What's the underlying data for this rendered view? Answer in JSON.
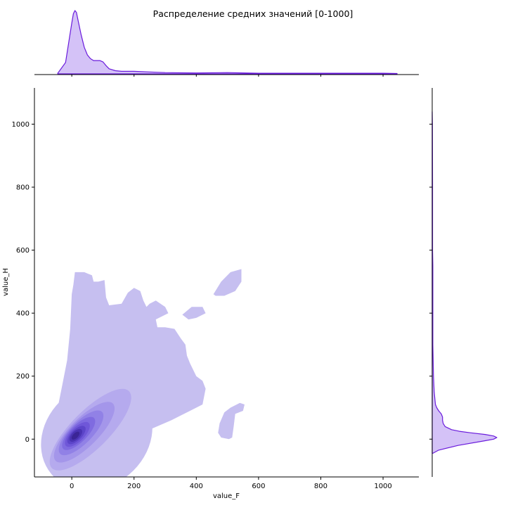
{
  "chart_data": {
    "type": "kde-joint",
    "title": "Распределение средних значений [0-1000]",
    "xlabel": "value_F",
    "ylabel": "value_H",
    "xlim": [
      -120,
      1115
    ],
    "ylim": [
      -120,
      1115
    ],
    "x_ticks": [
      0,
      200,
      400,
      600,
      800,
      1000
    ],
    "y_ticks": [
      0,
      200,
      400,
      600,
      800,
      1000
    ],
    "grid": false,
    "legend": "none",
    "kde_levels": 10,
    "marginal_x": {
      "x": [
        -45,
        -20,
        0,
        5,
        10,
        15,
        20,
        30,
        40,
        50,
        60,
        70,
        80,
        90,
        100,
        110,
        120,
        140,
        160,
        180,
        200,
        250,
        300,
        400,
        500,
        600,
        700,
        800,
        900,
        1000,
        1045
      ],
      "density": [
        0.01,
        0.18,
        0.8,
        0.95,
        1.0,
        0.97,
        0.85,
        0.62,
        0.42,
        0.3,
        0.24,
        0.21,
        0.21,
        0.21,
        0.19,
        0.13,
        0.08,
        0.05,
        0.04,
        0.04,
        0.04,
        0.03,
        0.02,
        0.015,
        0.02,
        0.01,
        0.01,
        0.01,
        0.01,
        0.01,
        0.005
      ]
    },
    "marginal_y": {
      "y": [
        -45,
        -35,
        -20,
        -5,
        0,
        5,
        10,
        15,
        20,
        25,
        30,
        40,
        50,
        60,
        70,
        80,
        90,
        100,
        110,
        130,
        150,
        200,
        300,
        400,
        500,
        550,
        600,
        800,
        1000,
        1040
      ],
      "density": [
        0.01,
        0.1,
        0.4,
        0.82,
        0.95,
        1.0,
        0.95,
        0.82,
        0.6,
        0.42,
        0.3,
        0.2,
        0.17,
        0.16,
        0.16,
        0.14,
        0.1,
        0.07,
        0.05,
        0.04,
        0.03,
        0.02,
        0.01,
        0.01,
        0.01,
        0.01,
        0.005,
        0.005,
        0.003,
        0.0
      ]
    },
    "kde_2d": {
      "outer_region_1": [
        [
          -65,
          -60
        ],
        [
          -10,
          -60
        ],
        [
          50,
          -40
        ],
        [
          150,
          -5
        ],
        [
          250,
          30
        ],
        [
          320,
          60
        ],
        [
          380,
          90
        ],
        [
          420,
          110
        ],
        [
          430,
          160
        ],
        [
          420,
          185
        ],
        [
          400,
          200
        ],
        [
          380,
          240
        ],
        [
          370,
          265
        ],
        [
          365,
          300
        ],
        [
          350,
          320
        ],
        [
          330,
          350
        ],
        [
          300,
          355
        ],
        [
          275,
          355
        ],
        [
          270,
          380
        ],
        [
          310,
          400
        ],
        [
          300,
          420
        ],
        [
          270,
          440
        ],
        [
          250,
          430
        ],
        [
          240,
          420
        ],
        [
          230,
          440
        ],
        [
          220,
          470
        ],
        [
          200,
          480
        ],
        [
          180,
          465
        ],
        [
          160,
          430
        ],
        [
          120,
          425
        ],
        [
          110,
          450
        ],
        [
          105,
          505
        ],
        [
          85,
          500
        ],
        [
          70,
          500
        ],
        [
          65,
          520
        ],
        [
          40,
          530
        ],
        [
          10,
          530
        ],
        [
          5,
          490
        ],
        [
          0,
          460
        ],
        [
          -5,
          350
        ],
        [
          -15,
          250
        ],
        [
          -30,
          175
        ],
        [
          -45,
          100
        ],
        [
          -55,
          40
        ],
        [
          -65,
          -10
        ]
      ],
      "outer_region_2": [
        [
          355,
          395
        ],
        [
          385,
          420
        ],
        [
          420,
          420
        ],
        [
          430,
          400
        ],
        [
          400,
          385
        ],
        [
          375,
          380
        ]
      ],
      "outer_region_3": [
        [
          455,
          460
        ],
        [
          480,
          500
        ],
        [
          510,
          530
        ],
        [
          545,
          540
        ],
        [
          545,
          500
        ],
        [
          525,
          470
        ],
        [
          490,
          455
        ],
        [
          462,
          455
        ]
      ],
      "outer_region_4": [
        [
          470,
          20
        ],
        [
          475,
          50
        ],
        [
          490,
          85
        ],
        [
          510,
          100
        ],
        [
          540,
          115
        ],
        [
          555,
          110
        ],
        [
          550,
          90
        ],
        [
          525,
          80
        ],
        [
          520,
          40
        ],
        [
          515,
          5
        ],
        [
          505,
          0
        ],
        [
          480,
          5
        ]
      ],
      "levels": [
        {
          "c": [
            80,
            10
          ],
          "rx": 190,
          "ry": 160,
          "rot": -40
        },
        {
          "c": [
            60,
            30
          ],
          "rx": 175,
          "ry": 60,
          "rot": -45
        },
        {
          "c": [
            40,
            22
          ],
          "rx": 130,
          "ry": 45,
          "rot": -45
        },
        {
          "c": [
            30,
            20
          ],
          "rx": 95,
          "ry": 35,
          "rot": -45
        },
        {
          "c": [
            22,
            18
          ],
          "rx": 70,
          "ry": 27,
          "rot": -45
        },
        {
          "c": [
            18,
            15
          ],
          "rx": 52,
          "ry": 22,
          "rot": -45
        },
        {
          "c": [
            15,
            13
          ],
          "rx": 38,
          "ry": 17,
          "rot": -45
        },
        {
          "c": [
            13,
            12
          ],
          "rx": 26,
          "ry": 13,
          "rot": -45
        },
        {
          "c": [
            12,
            11
          ],
          "rx": 16,
          "ry": 8,
          "rot": -45
        }
      ]
    },
    "colors": {
      "line": "#6a1bdc",
      "fill_margin": "#d4c2f7",
      "level_1": "#c6bff0",
      "level_2": "#b5aaee",
      "level_3": "#a496ea",
      "level_4": "#9181e6",
      "level_5": "#7f6be0",
      "level_6": "#6f57d8",
      "level_7": "#5c45c9",
      "level_8": "#4a33b3",
      "level_9": "#3b2596"
    }
  }
}
